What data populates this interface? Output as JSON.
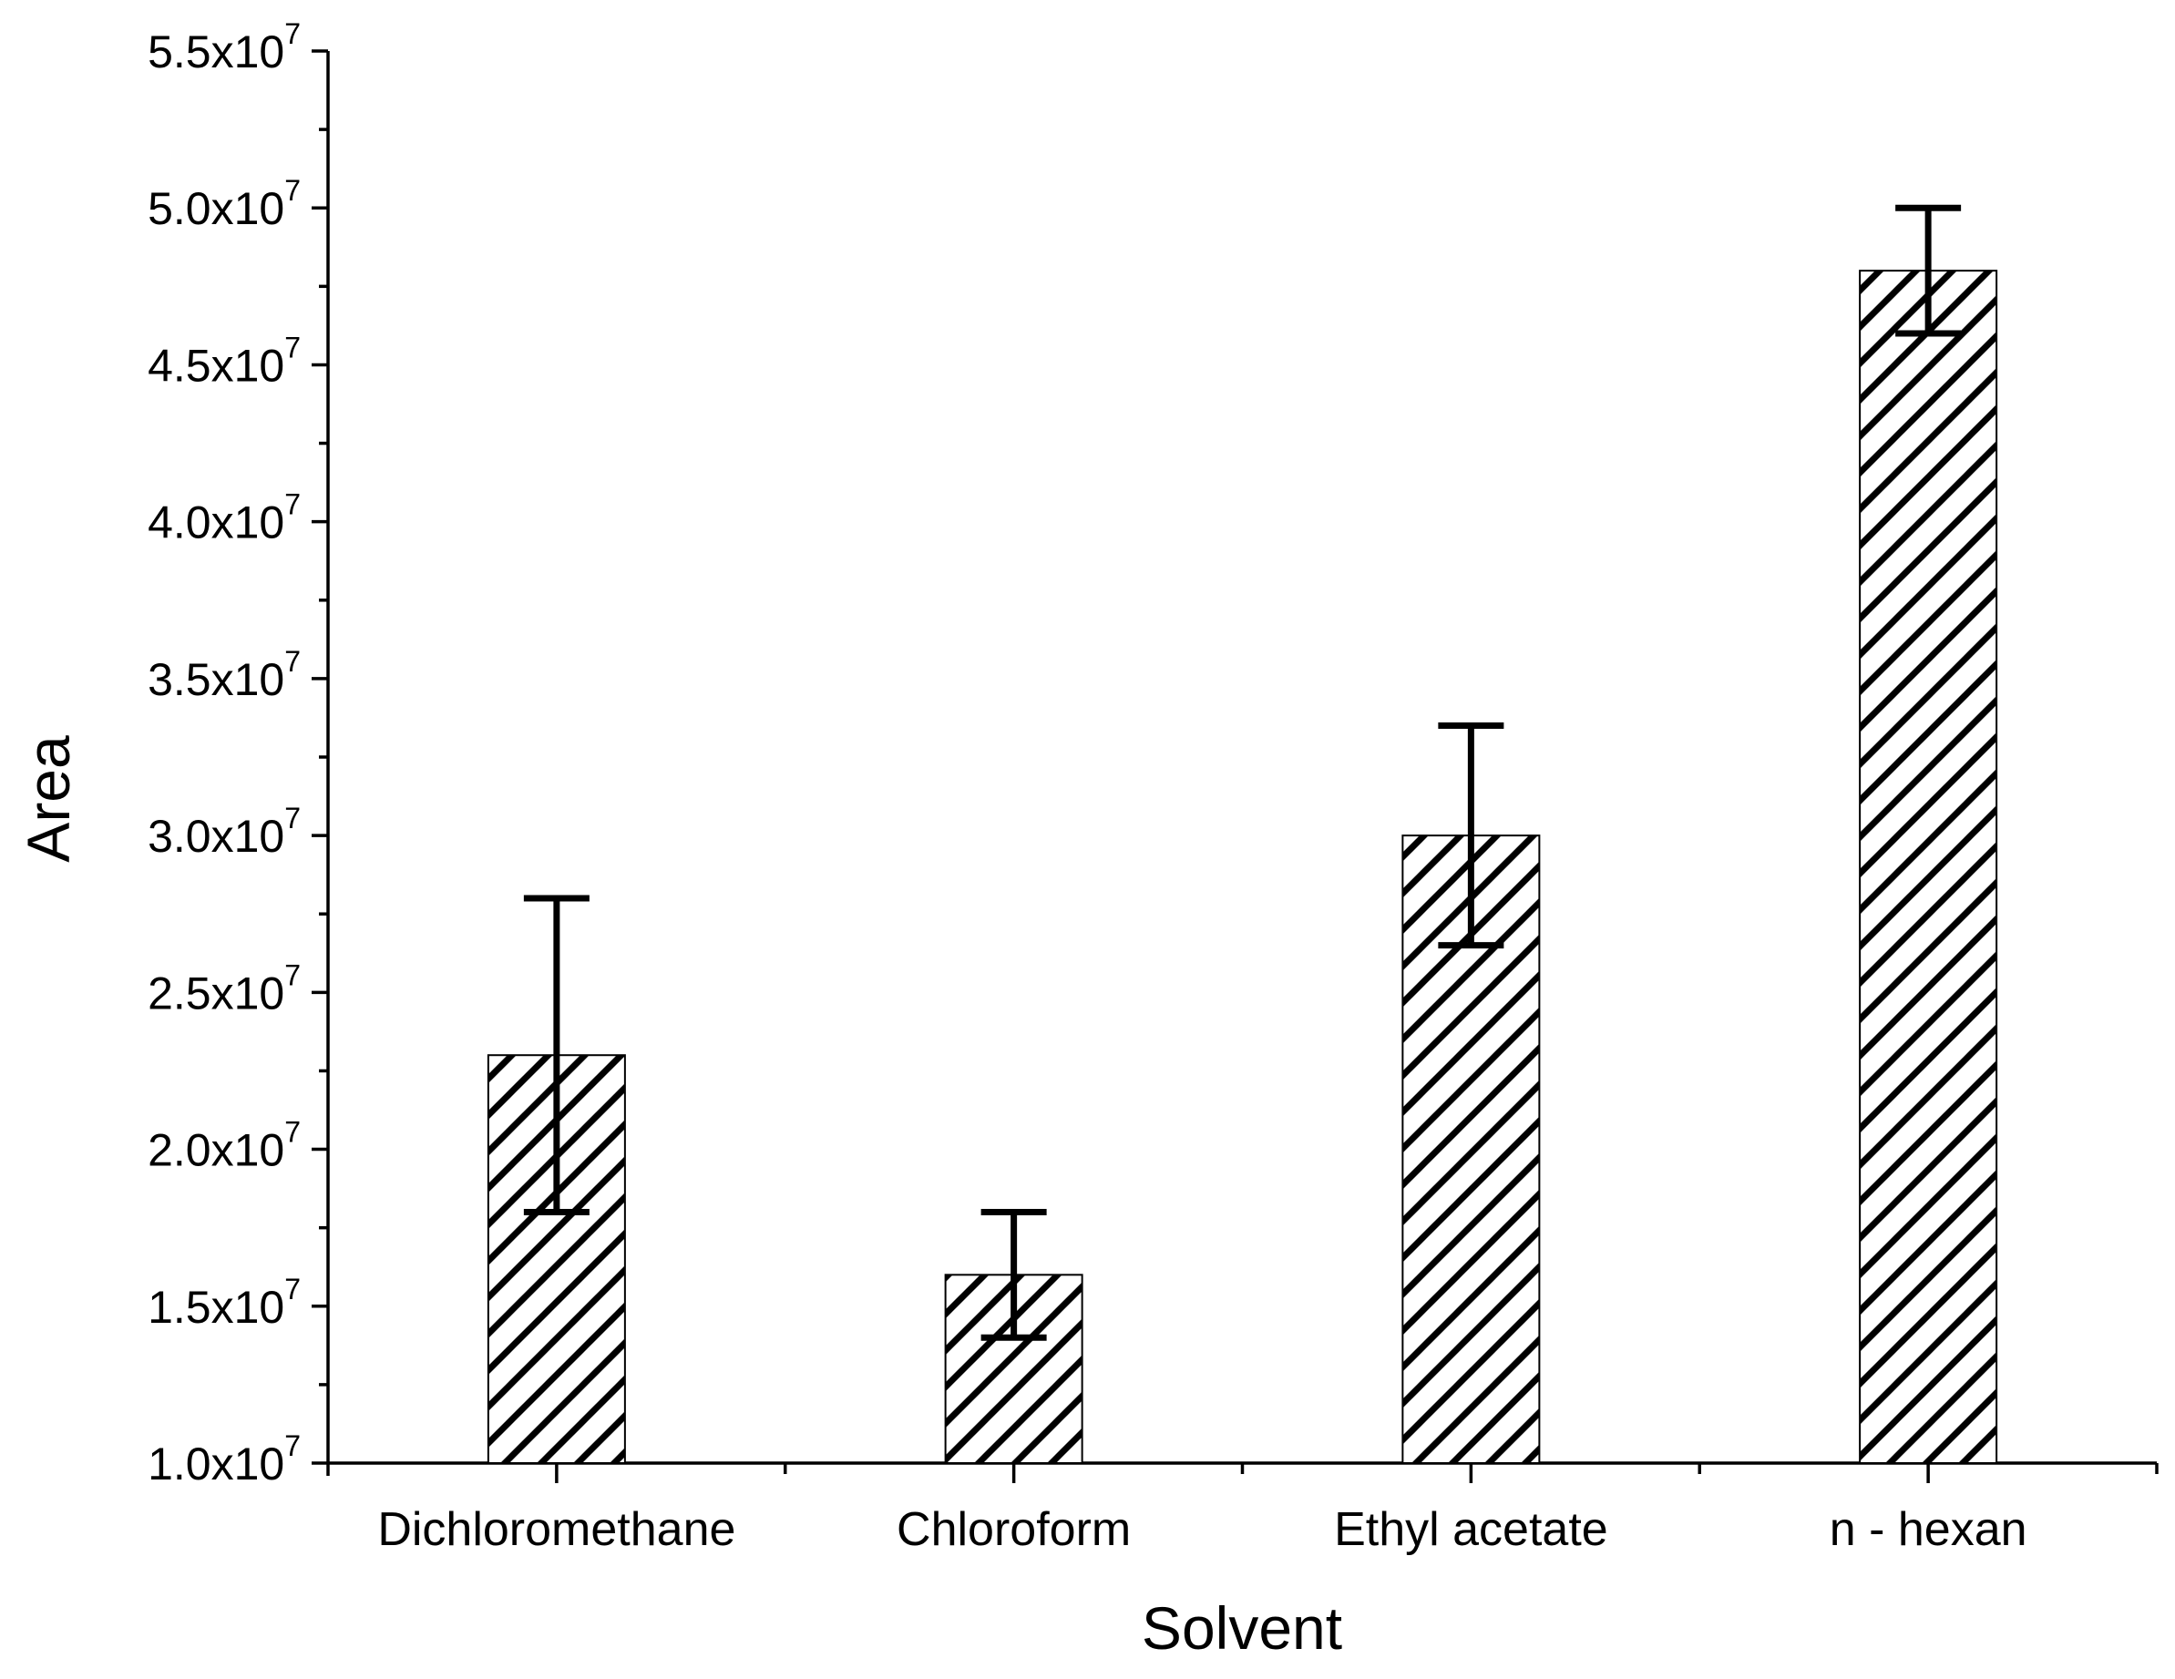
{
  "chart_data": {
    "type": "bar",
    "title": "",
    "xlabel": "Solvent",
    "ylabel": "Area",
    "categories": [
      "Dichloromethane",
      "Chloroform",
      "Ethyl acetate",
      "n - hexan"
    ],
    "values": [
      23000000,
      16000000,
      30000000,
      48000000
    ],
    "error_upper": [
      28000000,
      18000000,
      33500000,
      50000000
    ],
    "error_lower": [
      18000000,
      14000000,
      26500000,
      46000000
    ],
    "ylim": [
      10000000,
      55000000
    ],
    "y_major_step": 5000000,
    "y_minor_step": 2500000,
    "y_ticks": [
      {
        "value": 10000000,
        "mantissa": "1.0x10",
        "exponent": "7"
      },
      {
        "value": 15000000,
        "mantissa": "1.5x10",
        "exponent": "7"
      },
      {
        "value": 20000000,
        "mantissa": "2.0x10",
        "exponent": "7"
      },
      {
        "value": 25000000,
        "mantissa": "2.5x10",
        "exponent": "7"
      },
      {
        "value": 30000000,
        "mantissa": "3.0x10",
        "exponent": "7"
      },
      {
        "value": 35000000,
        "mantissa": "3.5x10",
        "exponent": "7"
      },
      {
        "value": 40000000,
        "mantissa": "4.0x10",
        "exponent": "7"
      },
      {
        "value": 45000000,
        "mantissa": "4.5x10",
        "exponent": "7"
      },
      {
        "value": 50000000,
        "mantissa": "5.0x10",
        "exponent": "7"
      },
      {
        "value": 55000000,
        "mantissa": "5.5x10",
        "exponent": "7"
      }
    ],
    "bar_fill": "hatched",
    "colors": {
      "bar_edge": "#000000",
      "hatch": "#000000",
      "background": "#ffffff",
      "axis": "#000000"
    },
    "grid": false,
    "legend": "none"
  }
}
